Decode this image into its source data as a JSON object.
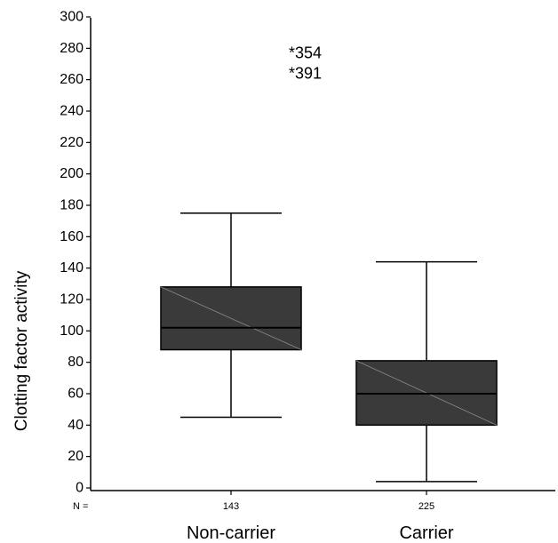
{
  "chart_data": {
    "type": "boxplot",
    "ylabel": "Clotting factor activity",
    "xlabel": "",
    "ylim": [
      0,
      300
    ],
    "yticks": [
      "0",
      "20",
      "40",
      "60",
      "80",
      "100",
      "120",
      "140",
      "160",
      "180",
      "200",
      "220",
      "240",
      "260",
      "280",
      "300"
    ],
    "n_prefix": "N =",
    "grid": false,
    "boxes": [
      {
        "category": "Non-carrier",
        "n": "143",
        "whisker_low": 45,
        "q1": 88,
        "median": 102,
        "q3": 128,
        "whisker_high": 175,
        "outliers": [
          {
            "label": "*354",
            "value": 277
          },
          {
            "label": "*391",
            "value": 264
          }
        ]
      },
      {
        "category": "Carrier",
        "n": "225",
        "whisker_low": 4,
        "q1": 40,
        "median": 60,
        "q3": 81,
        "whisker_high": 144,
        "outliers": []
      }
    ],
    "colors": {
      "box_fill": "#3a3a3a",
      "box_stroke": "#000000",
      "diag": "#8a8a8a"
    }
  }
}
